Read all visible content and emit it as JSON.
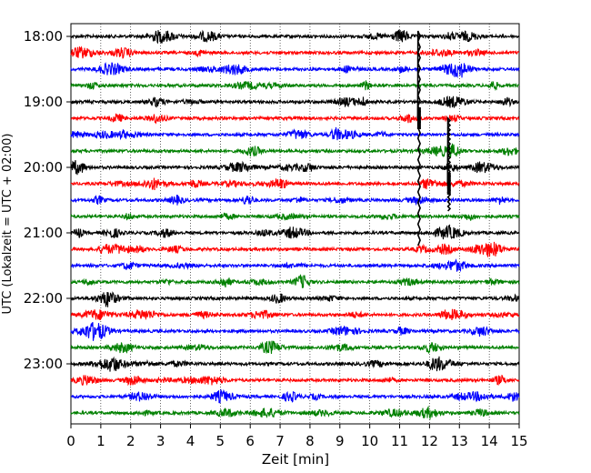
{
  "chart_data": {
    "type": "line",
    "title": "",
    "xlabel": "Zeit  [min]",
    "ylabel": "UTC (Lokalzeit = UTC + 02:00)",
    "xlim": [
      0,
      15
    ],
    "x_ticks": [
      "0",
      "1",
      "2",
      "3",
      "4",
      "5",
      "6",
      "7",
      "8",
      "9",
      "10",
      "11",
      "12",
      "13",
      "14",
      "15"
    ],
    "y_ticks": [
      "18:00",
      "19:00",
      "20:00",
      "21:00",
      "22:00",
      "23:00"
    ],
    "grid_x": "dotted",
    "row_start": "18:00",
    "row_end": "23:45",
    "row_interval_min": 15,
    "trace_colors": [
      "#000000",
      "#ff0000",
      "#0000ff",
      "#008000"
    ],
    "events": [
      {
        "row": "19:15",
        "minute": 11.65,
        "amplitude": "very large",
        "color": "#000000"
      },
      {
        "row": "20:15",
        "minute": 12.65,
        "amplitude": "large",
        "color": "#000000"
      }
    ]
  }
}
